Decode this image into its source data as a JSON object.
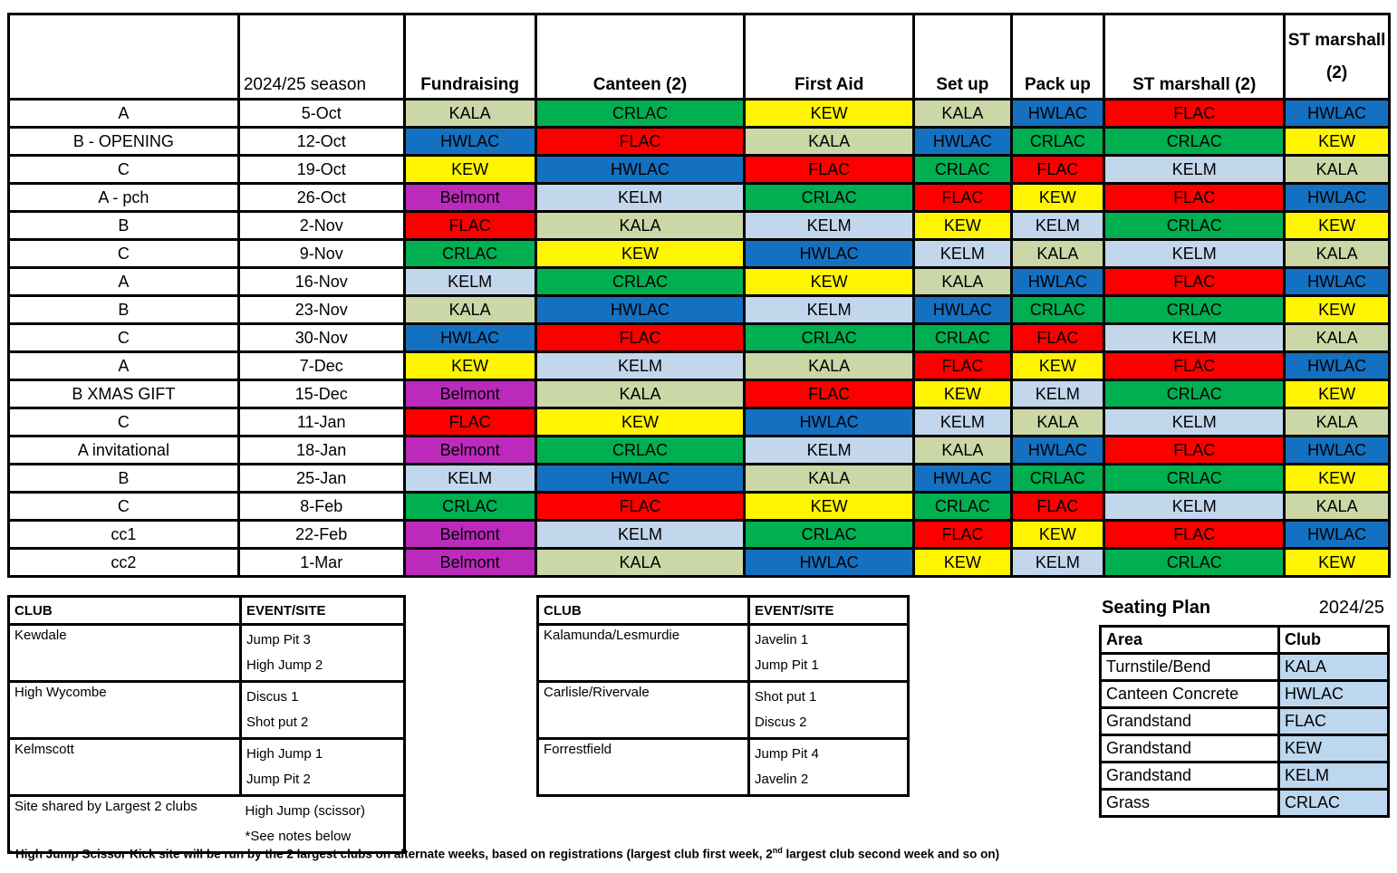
{
  "roster": {
    "headers": {
      "corner": "",
      "season": "2024/25 season",
      "columns": [
        "Fundraising",
        "Canteen (2)",
        "First Aid",
        "Set up",
        "Pack up",
        "ST marshall (2)",
        "ST marshall (2)"
      ]
    },
    "rows": [
      {
        "label": "A",
        "date": "5-Oct",
        "duties": [
          "KALA",
          "CRLAC",
          "KEW",
          "KALA",
          "HWLAC",
          "FLAC",
          "HWLAC"
        ]
      },
      {
        "label": "B - OPENING",
        "date": "12-Oct",
        "duties": [
          "HWLAC",
          "FLAC",
          "KALA",
          "HWLAC",
          "CRLAC",
          "CRLAC",
          "KEW"
        ]
      },
      {
        "label": "C",
        "date": "19-Oct",
        "duties": [
          "KEW",
          "HWLAC",
          "FLAC",
          "CRLAC",
          "FLAC",
          "KELM",
          "KALA"
        ]
      },
      {
        "label": "A - pch",
        "date": "26-Oct",
        "duties": [
          "Belmont",
          "KELM",
          "CRLAC",
          "FLAC",
          "KEW",
          "FLAC",
          "HWLAC"
        ]
      },
      {
        "label": "B",
        "date": "2-Nov",
        "duties": [
          "FLAC",
          "KALA",
          "KELM",
          "KEW",
          "KELM",
          "CRLAC",
          "KEW"
        ]
      },
      {
        "label": "C",
        "date": "9-Nov",
        "duties": [
          "CRLAC",
          "KEW",
          "HWLAC",
          "KELM",
          "KALA",
          "KELM",
          "KALA"
        ]
      },
      {
        "label": "A",
        "date": "16-Nov",
        "duties": [
          "KELM",
          "CRLAC",
          "KEW",
          "KALA",
          "HWLAC",
          "FLAC",
          "HWLAC"
        ]
      },
      {
        "label": "B",
        "date": "23-Nov",
        "duties": [
          "KALA",
          "HWLAC",
          "KELM",
          "HWLAC",
          "CRLAC",
          "CRLAC",
          "KEW"
        ]
      },
      {
        "label": "C",
        "date": "30-Nov",
        "duties": [
          "HWLAC",
          "FLAC",
          "CRLAC",
          "CRLAC",
          "FLAC",
          "KELM",
          "KALA"
        ]
      },
      {
        "label": "A",
        "date": "7-Dec",
        "duties": [
          "KEW",
          "KELM",
          "KALA",
          "FLAC",
          "KEW",
          "FLAC",
          "HWLAC"
        ]
      },
      {
        "label": "B XMAS GIFT",
        "date": "15-Dec",
        "duties": [
          "Belmont",
          "KALA",
          "FLAC",
          "KEW",
          "KELM",
          "CRLAC",
          "KEW"
        ]
      },
      {
        "label": "C",
        "date": "11-Jan",
        "duties": [
          "FLAC",
          "KEW",
          "HWLAC",
          "KELM",
          "KALA",
          "KELM",
          "KALA"
        ]
      },
      {
        "label": "A invitational",
        "date": "18-Jan",
        "duties": [
          "Belmont",
          "CRLAC",
          "KELM",
          "KALA",
          "HWLAC",
          "FLAC",
          "HWLAC"
        ]
      },
      {
        "label": "B",
        "date": "25-Jan",
        "duties": [
          "KELM",
          "HWLAC",
          "KALA",
          "HWLAC",
          "CRLAC",
          "CRLAC",
          "KEW"
        ]
      },
      {
        "label": "C",
        "date": "8-Feb",
        "duties": [
          "CRLAC",
          "FLAC",
          "KEW",
          "CRLAC",
          "FLAC",
          "KELM",
          "KALA"
        ]
      },
      {
        "label": "cc1",
        "date": "22-Feb",
        "duties": [
          "Belmont",
          "KELM",
          "CRLAC",
          "FLAC",
          "KEW",
          "FLAC",
          "HWLAC"
        ]
      },
      {
        "label": "cc2",
        "date": "1-Mar",
        "duties": [
          "Belmont",
          "KALA",
          "HWLAC",
          "KEW",
          "KELM",
          "CRLAC",
          "KEW"
        ]
      }
    ]
  },
  "club_colors": {
    "KALA": "#CBD7A6",
    "CRLAC": "#00AF50",
    "KEW": "#FFF500",
    "HWLAC": "#1470C0",
    "FLAC": "#FC0000",
    "KELM": "#C2D6EC",
    "Belmont": "#BB2ABB"
  },
  "site_tables": [
    {
      "headers": [
        "CLUB",
        "EVENT/SITE"
      ],
      "rows": [
        {
          "club": "Kewdale",
          "events": [
            "Jump Pit 3",
            "High Jump 2"
          ]
        },
        {
          "club": "High Wycombe",
          "events": [
            "Discus 1",
            "Shot put 2"
          ]
        },
        {
          "club": "Kelmscott",
          "events": [
            "High Jump 1",
            "Jump Pit 2"
          ]
        },
        {
          "club": "Site shared by Largest 2 clubs",
          "events": [
            "High Jump (scissor)",
            "*See notes below"
          ],
          "no_divider": true
        }
      ]
    },
    {
      "headers": [
        "CLUB",
        "EVENT/SITE"
      ],
      "rows": [
        {
          "club": "Kalamunda/Lesmurdie",
          "events": [
            "Javelin 1",
            "Jump Pit 1"
          ]
        },
        {
          "club": "Carlisle/Rivervale",
          "events": [
            "Shot put 1",
            "Discus 2"
          ]
        },
        {
          "club": "Forrestfield",
          "events": [
            "Jump Pit 4",
            "Javelin 2"
          ]
        }
      ]
    }
  ],
  "seating": {
    "title": "Seating Plan",
    "season": "2024/25",
    "headers": [
      "Area",
      "Club"
    ],
    "cell_color": "#BDD7EE",
    "rows": [
      {
        "area": "Turnstile/Bend",
        "club": "KALA"
      },
      {
        "area": "Canteen Concrete",
        "club": "HWLAC"
      },
      {
        "area": "Grandstand",
        "club": "FLAC"
      },
      {
        "area": "Grandstand",
        "club": "KEW"
      },
      {
        "area": "Grandstand",
        "club": "KELM"
      },
      {
        "area": "Grass",
        "club": "CRLAC"
      }
    ]
  },
  "footnote": {
    "prefix": "* High Jump Scissor Kick site will be run by the 2 largest clubs on alternate weeks, based on registrations (largest club first week, 2",
    "sup": "nd",
    "suffix": " largest club second week and so on)"
  }
}
